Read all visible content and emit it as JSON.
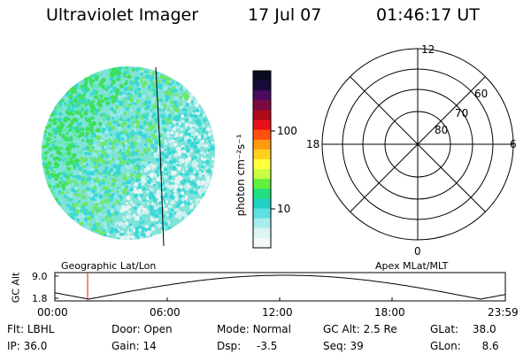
{
  "header": {
    "title": "Ultraviolet Imager",
    "date": "17 Jul 07",
    "time": "01:46:17 UT"
  },
  "colorbar": {
    "unit_label": "photon cm⁻²s⁻¹",
    "ticks": [
      "100",
      "10"
    ],
    "colors": [
      "#0a0a20",
      "#1a0a3a",
      "#4a0a60",
      "#7a0a40",
      "#b00a1a",
      "#e8101a",
      "#ff5010",
      "#ff9a10",
      "#ffd020",
      "#ffff40",
      "#c8ff40",
      "#60f040",
      "#20e080",
      "#20d0c0",
      "#60e0e0",
      "#a8ecec",
      "#dcf4f4",
      "#f4f8f8"
    ]
  },
  "geo_panel": {
    "label": "Geographic Lat/Lon"
  },
  "polar": {
    "label": "Apex MLat/MLT",
    "mlt_labels": {
      "top": "12",
      "left": "18",
      "right": "6",
      "bottom": "0"
    },
    "lat_labels": [
      "60",
      "70",
      "80"
    ]
  },
  "altitude_plot": {
    "ylabel": "GC Alt",
    "yticks": [
      "9.0",
      "1.8"
    ],
    "xticks": [
      "00:00",
      "06:00",
      "12:00",
      "18:00",
      "23:59"
    ],
    "marker_time": "01:46:17"
  },
  "status": {
    "filter": {
      "label": "Flt:",
      "value": "LBHL"
    },
    "door": {
      "label": "Door:",
      "value": "Open"
    },
    "mode": {
      "label": "Mode:",
      "value": "Normal"
    },
    "gc_alt": {
      "label": "GC Alt:",
      "value": "2.5 Re"
    },
    "glat": {
      "label": "GLat:",
      "value": "38.0"
    },
    "ip": {
      "label": "IP:",
      "value": "36.0"
    },
    "gain": {
      "label": "Gain:",
      "value": "14"
    },
    "dsp": {
      "label": "Dsp:",
      "value": "-3.5"
    },
    "seq": {
      "label": "Seq:",
      "value": "39"
    },
    "glon": {
      "label": "GLon:",
      "value": "8.6"
    }
  }
}
